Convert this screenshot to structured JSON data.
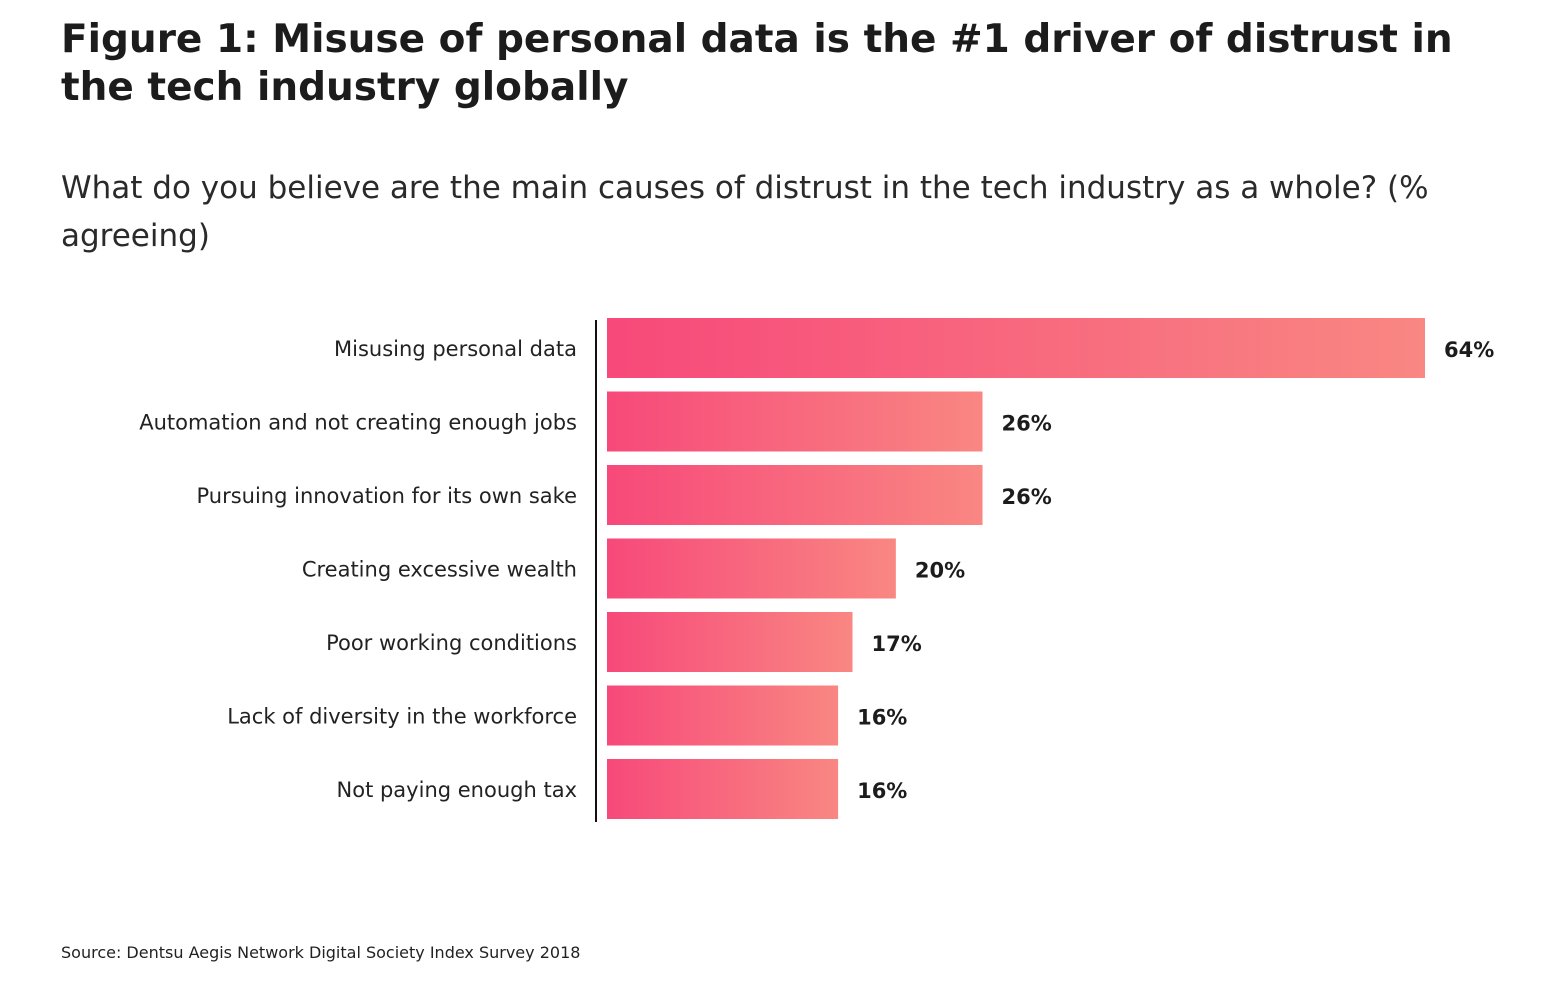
{
  "chart_data": {
    "type": "bar",
    "orientation": "horizontal",
    "title": "Figure 1: Misuse of personal data is the #1 driver of distrust in the tech industry globally",
    "subtitle": "What do you believe are the main causes of distrust in the tech industry as a whole? (% agreeing)",
    "categories": [
      "Misusing personal data",
      "Automation and not creating enough jobs",
      "Pursuing innovation for its own sake",
      "Creating excessive wealth",
      "Poor working conditions",
      "Lack of diversity in the workforce",
      "Not paying enough tax"
    ],
    "values": [
      64,
      26,
      26,
      20,
      17,
      16,
      16
    ],
    "value_labels": [
      "64%",
      "26%",
      "26%",
      "20%",
      "17%",
      "16%",
      "16%"
    ],
    "unit": "%",
    "grid": false,
    "legend": "none",
    "colors": {
      "gradient_start": "#f7497a",
      "gradient_end": "#f98782",
      "axis": "#111111"
    }
  },
  "source": "Source: Dentsu Aegis Network Digital Society Index Survey 2018"
}
